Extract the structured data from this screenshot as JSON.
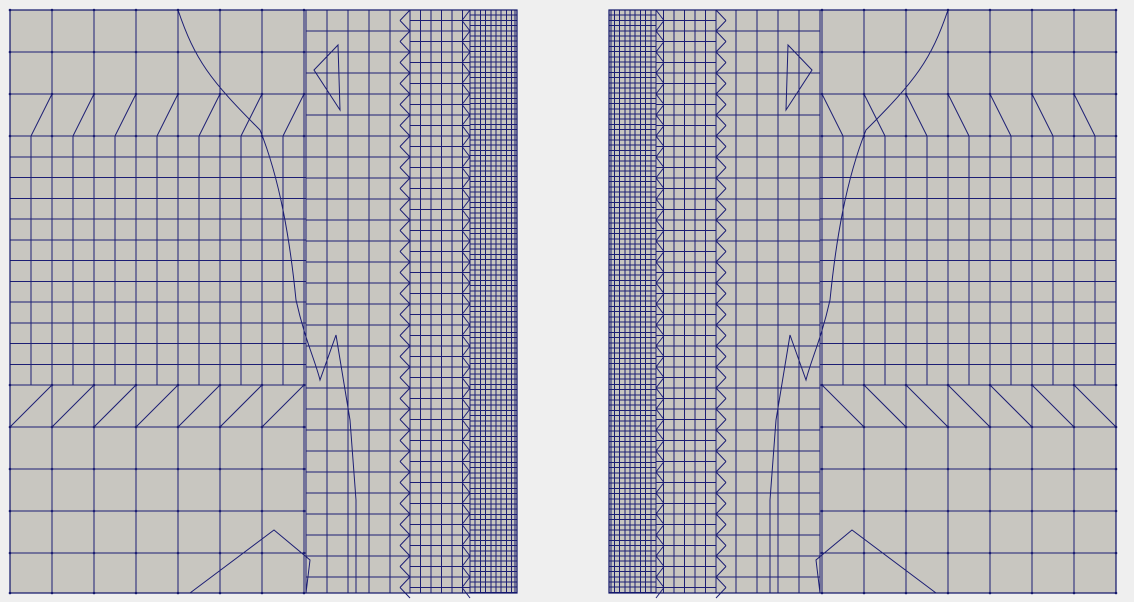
{
  "viewer": {
    "background_color": "#efefef",
    "surface_color": "#c8c6c0",
    "edge_color": "#1c1e74",
    "representation": "surface-with-edges"
  },
  "panels": [
    {
      "id": "left-mesh",
      "refined_side": "right"
    },
    {
      "id": "right-mesh",
      "refined_side": "left"
    }
  ]
}
